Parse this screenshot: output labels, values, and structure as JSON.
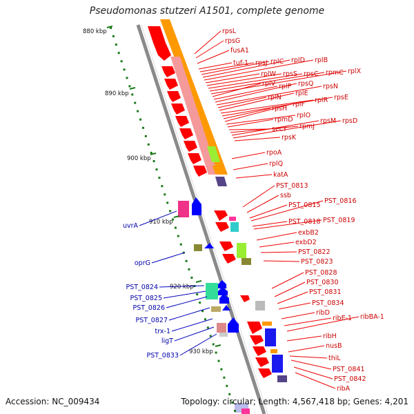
{
  "title": "Pseudomonas stutzeri A1501, complete genome",
  "footer": {
    "accession": "Accession: NC_009434",
    "topology": "Topology: circular; Length: 4,567,418 bp; Genes: 4,201"
  },
  "colors": {
    "backbone": "#888888",
    "forward_label": "#dd0000",
    "reverse_label": "#0000bb",
    "ruler_tick": "#1a7a1a",
    "cds_forward": "#ff0000",
    "cds_reverse": "#0000ff",
    "track_orange": "#ff9900",
    "track_pink": "#f08080",
    "track_lime": "#99ee33",
    "track_purple": "#554488"
  },
  "ruler_labels": [
    "880 kbp",
    "890 kbp",
    "900 kbp",
    "910 kbp",
    "920 kbp",
    "930 kbp"
  ],
  "forward_genes": [
    "rpsL",
    "rpsG",
    "fusA1",
    "tuf-1",
    "rpsJ",
    "rplC",
    "rplD",
    "rplB",
    "rplW",
    "rpsS",
    "rpsC",
    "rpmC",
    "rplX",
    "rplV",
    "rplP",
    "rpsQ",
    "rpsN",
    "rplN",
    "rplE",
    "rplR",
    "rpsE",
    "rpsH",
    "rplF",
    "rplO",
    "rpmD",
    "secY",
    "rpmJ",
    "rpsM",
    "rpsD",
    "rpsK",
    "rpoA",
    "rplQ",
    "katA",
    "PST_0813",
    "ssb",
    "PST_0815",
    "PST_0816",
    "PST_0818",
    "PST_0819",
    "exbB2",
    "exbD2",
    "PST_0822",
    "PST_0823",
    "PST_0828",
    "PST_0830",
    "PST_0831",
    "PST_0834",
    "ribD",
    "ribE-1",
    "ribBA-1",
    "ribH",
    "nusB",
    "thiL",
    "PST_0841",
    "PST_0842",
    "ribA"
  ],
  "reverse_genes": [
    "uvrA",
    "oprG",
    "PST_0824",
    "PST_0825",
    "PST_0826",
    "PST_0827",
    "trx-1",
    "ligT",
    "PST_0833"
  ]
}
